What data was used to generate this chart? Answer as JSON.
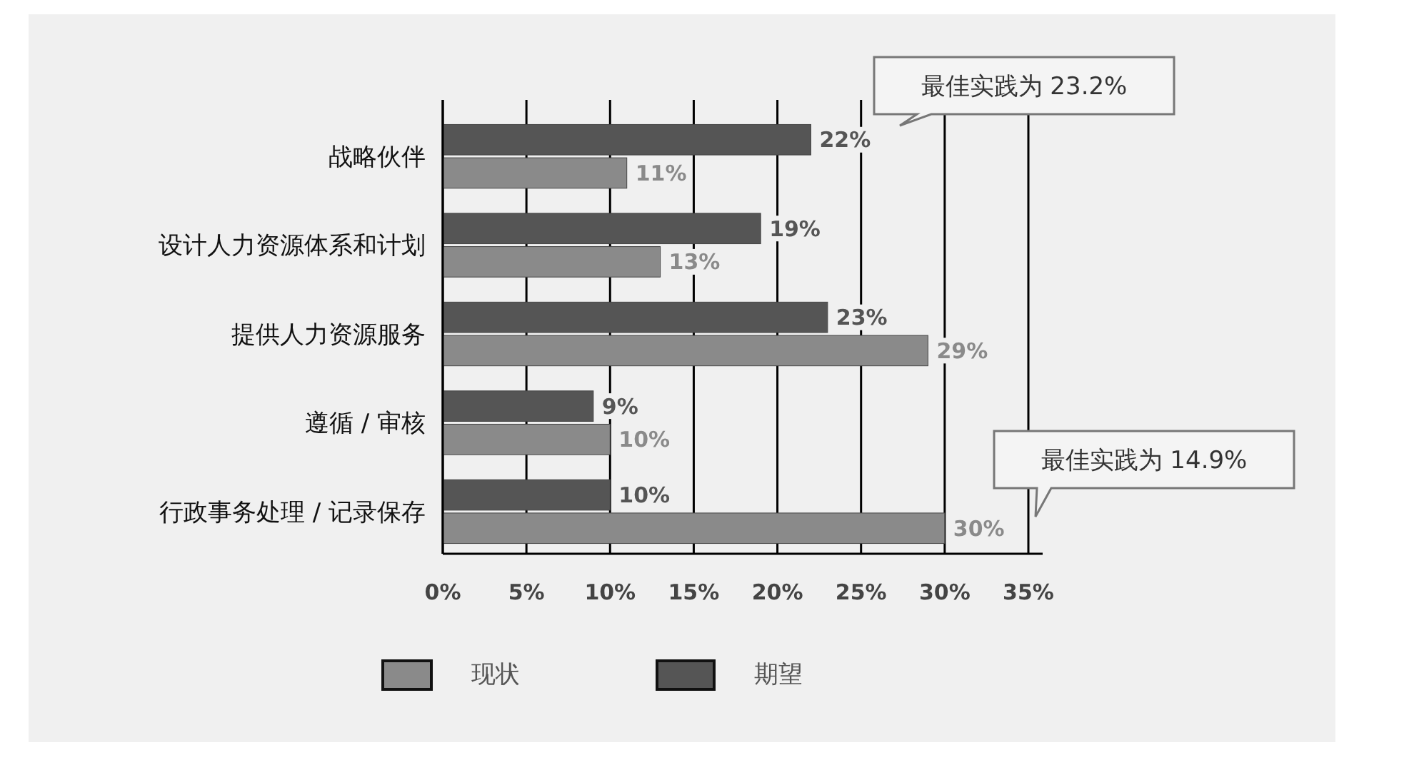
{
  "chart_data": {
    "type": "bar",
    "orientation": "horizontal",
    "categories": [
      "战略伙伴",
      "设计人力资源体系和计划",
      "提供人力资源服务",
      "遵循 / 审核",
      "行政事务处理 / 记录保存"
    ],
    "series": [
      {
        "name": "现状",
        "color": "#8a8a8a",
        "values": [
          11,
          13,
          29,
          10,
          30
        ],
        "value_labels": [
          "11%",
          "13%",
          "29%",
          "10%",
          "30%"
        ]
      },
      {
        "name": "期望",
        "color": "#555555",
        "values": [
          22,
          19,
          23,
          9,
          10
        ],
        "value_labels": [
          "22%",
          "19%",
          "23%",
          "9%",
          "10%"
        ]
      }
    ],
    "xlim": [
      0,
      35
    ],
    "xticks": [
      {
        "value": 0,
        "label": "0%"
      },
      {
        "value": 5,
        "label": "5%"
      },
      {
        "value": 10,
        "label": "10%"
      },
      {
        "value": 15,
        "label": "15%"
      },
      {
        "value": 20,
        "label": "20%"
      },
      {
        "value": 25,
        "label": "25%"
      },
      {
        "value": 30,
        "label": "30%"
      },
      {
        "value": 35,
        "label": "35%"
      }
    ],
    "grid": "x",
    "legend": "bottom",
    "annotations": [
      "最佳实践为 23.2%",
      "最佳实践为 14.9%"
    ]
  }
}
